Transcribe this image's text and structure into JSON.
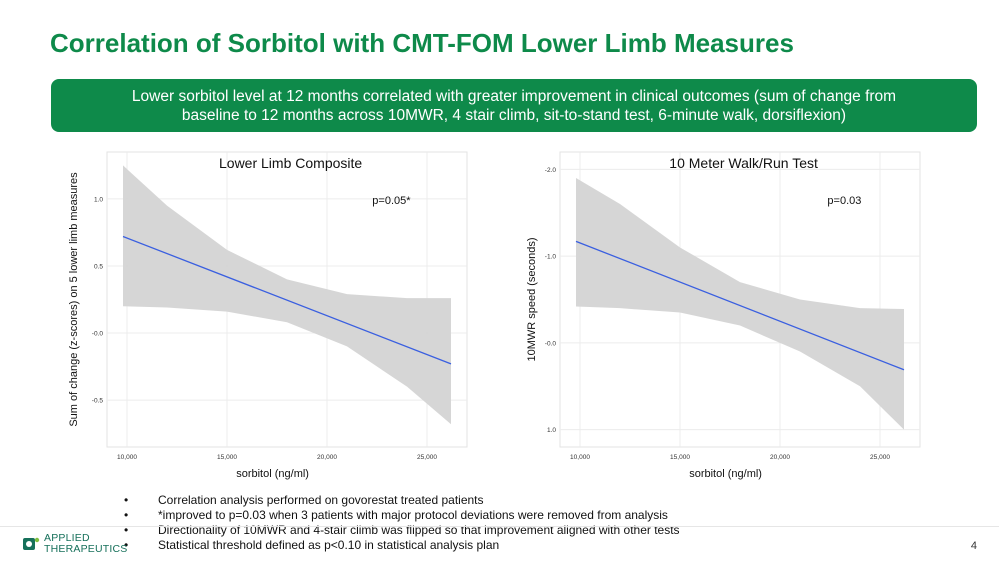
{
  "slide": {
    "title": "Correlation of Sorbitol with CMT-FOM Lower Limb Measures",
    "banner_line1": "Lower sorbitol level at 12 months correlated with greater improvement in clinical outcomes (sum of change from",
    "banner_line2": "baseline to 12 months across 10MWR, 4 stair climb, sit-to-stand test, 6-minute walk, dorsiflexion)",
    "bullets": [
      "Correlation analysis performed on govorestat treated patients",
      "*improved to p=0.03 when 3 patients with major protocol deviations were removed from analysis",
      "Directionality of 10MWR and 4-stair climb was flipped so that improvement aligned with other tests",
      "Statistical threshold defined as p<0.10 in statistical analysis plan"
    ],
    "logo_line1": "APPLIED",
    "logo_line2": "THERAPEUTICS",
    "page_number": "4"
  },
  "colors": {
    "title_green": "#0e8a4a",
    "banner_bg": "#0e8a4a",
    "line_blue": "#3a5fe0",
    "band_gray": "#d4d4d4",
    "grid": "#ececec"
  },
  "chart_data": [
    {
      "type": "line",
      "title": "Lower Limb Composite",
      "annotation": "p=0.05*",
      "xlabel": "sorbitol (ng/ml)",
      "ylabel": "Sum of change (z-scores) on 5 lower limb measures",
      "xlim": [
        9000,
        27000
      ],
      "ylim": [
        -0.85,
        1.35
      ],
      "x_ticks": [
        10000,
        15000,
        20000,
        25000
      ],
      "x_tick_labels": [
        "10,000",
        "15,000",
        "20,000",
        "25,000"
      ],
      "y_ticks": [
        1.0,
        0.5,
        0.0,
        -0.5
      ],
      "y_tick_labels": [
        "1.0",
        "0.5",
        "-0.0",
        "-0.5"
      ],
      "fit_x": [
        9800,
        26200
      ],
      "fit_y": [
        0.72,
        -0.23
      ],
      "ci_upper": [
        [
          9800,
          1.25
        ],
        [
          12000,
          0.95
        ],
        [
          15000,
          0.62
        ],
        [
          18000,
          0.4
        ],
        [
          21000,
          0.29
        ],
        [
          24000,
          0.26
        ],
        [
          26200,
          0.26
        ]
      ],
      "ci_lower": [
        [
          9800,
          0.2
        ],
        [
          12000,
          0.19
        ],
        [
          15000,
          0.16
        ],
        [
          18000,
          0.08
        ],
        [
          21000,
          -0.1
        ],
        [
          24000,
          -0.4
        ],
        [
          26200,
          -0.68
        ]
      ]
    },
    {
      "type": "line",
      "title": "10 Meter Walk/Run Test",
      "annotation": "p=0.03",
      "xlabel": "sorbitol (ng/ml)",
      "ylabel": "10MWR speed (seconds)",
      "xlim": [
        9000,
        27000
      ],
      "ylim": [
        1.2,
        -2.2
      ],
      "x_ticks": [
        10000,
        15000,
        20000,
        25000
      ],
      "x_tick_labels": [
        "10,000",
        "15,000",
        "20,000",
        "25,000"
      ],
      "y_ticks": [
        -2.0,
        -1.0,
        0.0,
        1.0
      ],
      "y_tick_labels": [
        "-2.0",
        "-1.0",
        "-0.0",
        "1.0"
      ],
      "fit_x": [
        9800,
        26200
      ],
      "fit_y": [
        -1.17,
        0.31
      ],
      "ci_upper": [
        [
          9800,
          -1.9
        ],
        [
          12000,
          -1.6
        ],
        [
          15000,
          -1.1
        ],
        [
          18000,
          -0.7
        ],
        [
          21000,
          -0.5
        ],
        [
          24000,
          -0.4
        ],
        [
          26200,
          -0.39
        ]
      ],
      "ci_lower": [
        [
          9800,
          -0.42
        ],
        [
          12000,
          -0.4
        ],
        [
          15000,
          -0.35
        ],
        [
          18000,
          -0.2
        ],
        [
          21000,
          0.1
        ],
        [
          24000,
          0.5
        ],
        [
          26200,
          1.0
        ]
      ]
    }
  ]
}
